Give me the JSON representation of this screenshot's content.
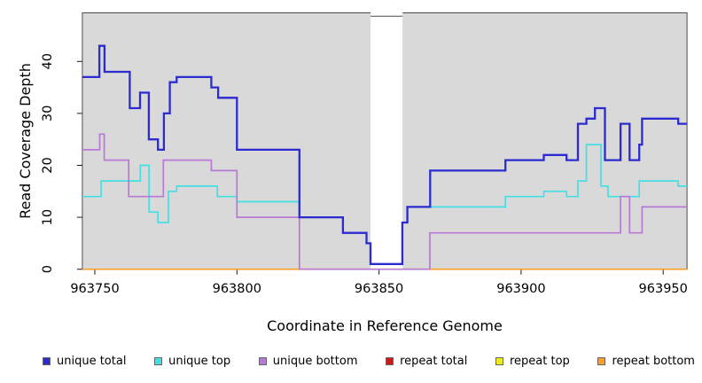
{
  "figure": {
    "x_axis": {
      "title": "Coordinate in Reference Genome",
      "tick_labels": [
        "963750",
        "963800",
        "963850",
        "963900",
        "963950"
      ],
      "tick_values": [
        963750,
        963800,
        963850,
        963900,
        963950
      ]
    },
    "y_axis": {
      "title": "Read Coverage Depth",
      "tick_labels": [
        "0",
        "10",
        "20",
        "30",
        "40"
      ],
      "tick_values": [
        0,
        10,
        20,
        30,
        40
      ]
    },
    "colors": {
      "page_bg": "#ffffff",
      "plot_bg": "#d9d9d9",
      "plot_border": "#4d4d4d",
      "gap_band": "#ffffff",
      "tick": "#1a1a1a",
      "text": "#000000"
    },
    "gap_region": {
      "from": 963847.0,
      "to": 963858.3
    }
  },
  "chart_data": {
    "type": "line",
    "subtype": "step",
    "title": "",
    "xlabel": "Coordinate in Reference Genome",
    "ylabel": "Read Coverage Depth",
    "xlim": [
      963745.6,
      963958.4
    ],
    "ylim": [
      0,
      49.35
    ],
    "grid": false,
    "legend_position": "bottom",
    "gap_band": {
      "from": 963847.0,
      "to": 963858.3
    },
    "series": [
      {
        "name": "unique total",
        "color": "#2b2bd0",
        "line_width": 2.3,
        "points": [
          [
            963745.6,
            37
          ],
          [
            963751.6,
            43
          ],
          [
            963753.4,
            38
          ],
          [
            963762.3,
            31
          ],
          [
            963765.9,
            34
          ],
          [
            963769.0,
            25
          ],
          [
            963772.2,
            23
          ],
          [
            963774.3,
            30
          ],
          [
            963776.4,
            36
          ],
          [
            963778.8,
            37
          ],
          [
            963791.0,
            35
          ],
          [
            963793.4,
            33
          ],
          [
            963800.0,
            23
          ],
          [
            963822.0,
            10
          ],
          [
            963837.3,
            7
          ],
          [
            963845.6,
            5
          ],
          [
            963847.0,
            1
          ],
          [
            963858.2,
            9
          ],
          [
            963860.0,
            12
          ],
          [
            963868.0,
            19
          ],
          [
            963894.5,
            21
          ],
          [
            963908.0,
            22
          ],
          [
            963916.0,
            21
          ],
          [
            963920.0,
            28
          ],
          [
            963923.0,
            29
          ],
          [
            963926.0,
            31
          ],
          [
            963929.5,
            21
          ],
          [
            963935.0,
            28
          ],
          [
            963938.2,
            21
          ],
          [
            963941.6,
            24
          ],
          [
            963942.6,
            29
          ],
          [
            963955.3,
            28
          ]
        ]
      },
      {
        "name": "unique top",
        "color": "#44dfe4",
        "line_width": 1.7,
        "points": [
          [
            963745.6,
            14
          ],
          [
            963752.2,
            17
          ],
          [
            963766.0,
            20
          ],
          [
            963769.1,
            11
          ],
          [
            963772.2,
            9
          ],
          [
            963775.9,
            15
          ],
          [
            963778.8,
            16
          ],
          [
            963793.1,
            14
          ],
          [
            963800.0,
            13
          ],
          [
            963822.0,
            10
          ],
          [
            963837.3,
            7
          ],
          [
            963845.6,
            5
          ],
          [
            963847.0,
            1
          ],
          [
            963858.2,
            9
          ],
          [
            963860.0,
            12
          ],
          [
            963894.5,
            14
          ],
          [
            963908.0,
            15
          ],
          [
            963916.0,
            14
          ],
          [
            963920.0,
            17
          ],
          [
            963923.0,
            24
          ],
          [
            963928.1,
            16
          ],
          [
            963930.6,
            14
          ],
          [
            963941.6,
            17
          ],
          [
            963955.3,
            16
          ]
        ]
      },
      {
        "name": "unique bottom",
        "color": "#b879d6",
        "line_width": 1.7,
        "points": [
          [
            963745.6,
            23
          ],
          [
            963751.7,
            26
          ],
          [
            963753.3,
            21
          ],
          [
            963761.9,
            14
          ],
          [
            963774.1,
            21
          ],
          [
            963791.0,
            19
          ],
          [
            963800.0,
            10
          ],
          [
            963822.0,
            0
          ],
          [
            963867.9,
            7
          ],
          [
            963935.0,
            14
          ],
          [
            963938.2,
            7
          ],
          [
            963942.6,
            12
          ]
        ]
      },
      {
        "name": "repeat total",
        "color": "#c81c1c",
        "line_width": 1.5,
        "points": [
          [
            963745.6,
            0
          ]
        ]
      },
      {
        "name": "repeat top",
        "color": "#efec1c",
        "line_width": 1.5,
        "points": [
          [
            963745.6,
            0
          ]
        ]
      },
      {
        "name": "repeat bottom",
        "color": "#ff9e26",
        "line_width": 1.7,
        "points": [
          [
            963745.6,
            0
          ]
        ]
      }
    ],
    "draw_order": [
      3,
      4,
      5,
      1,
      2,
      0
    ]
  }
}
